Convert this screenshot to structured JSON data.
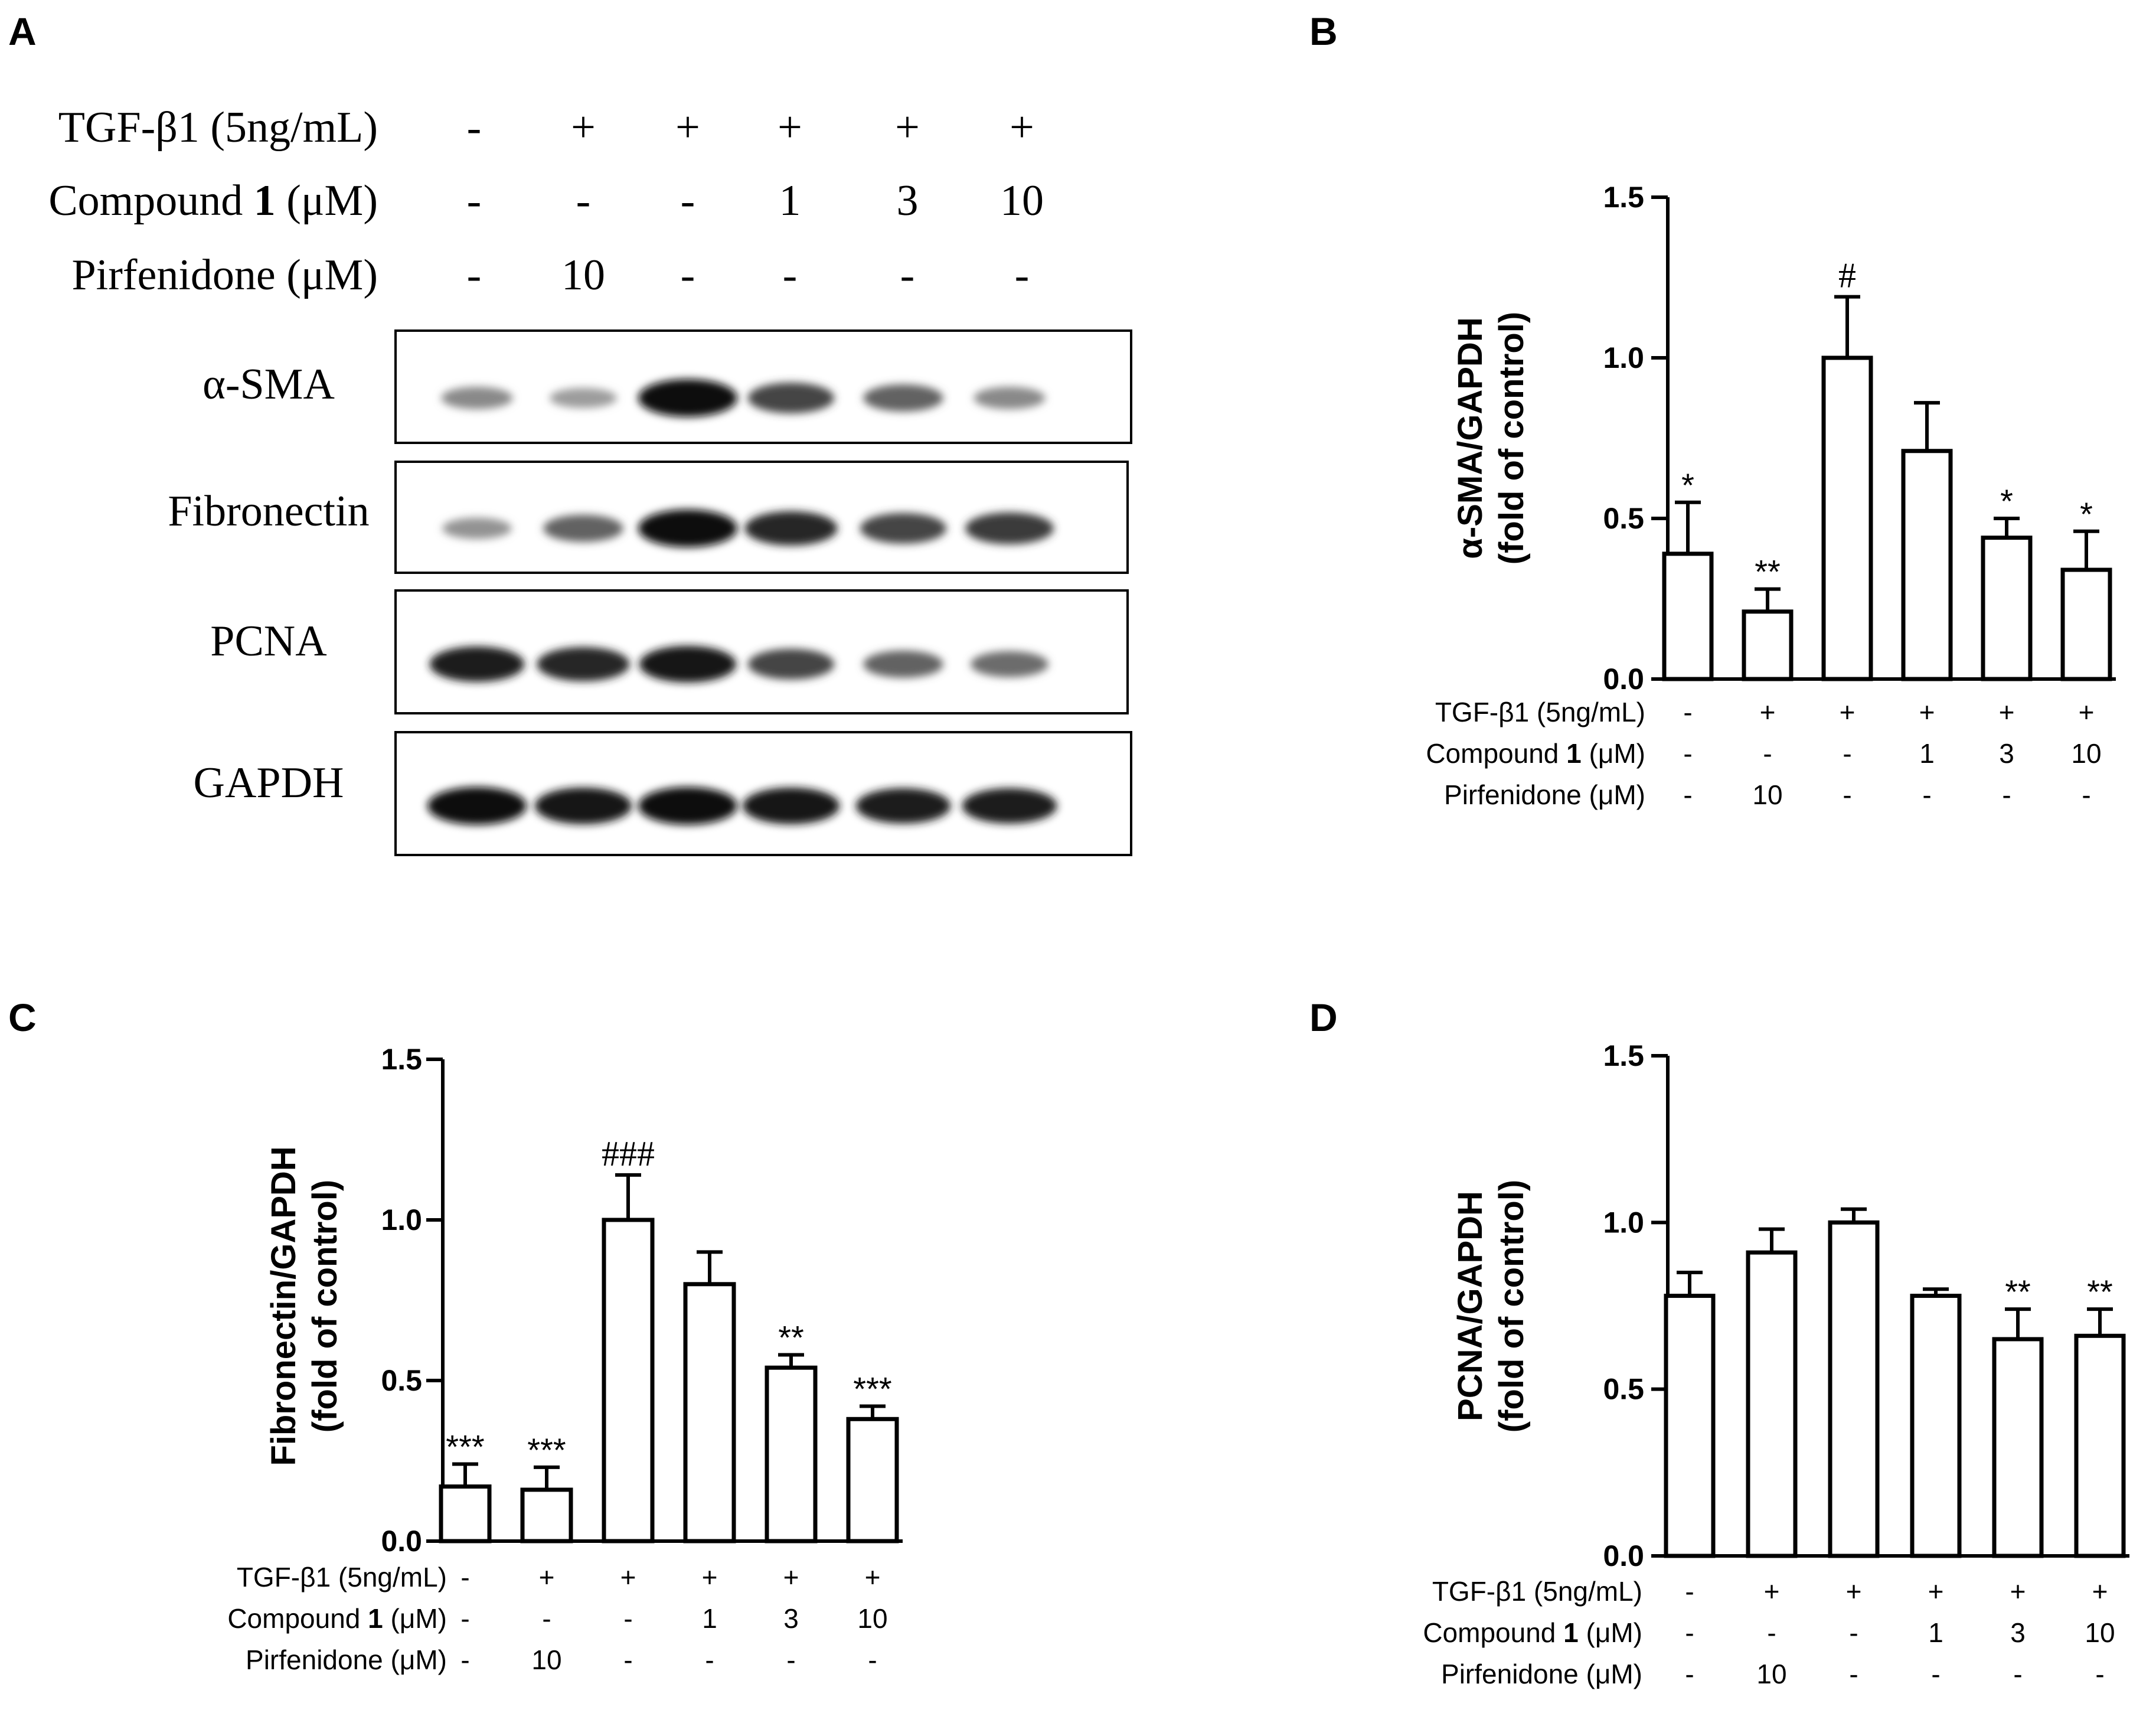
{
  "panels": {
    "a": {
      "letter": "A"
    },
    "b": {
      "letter": "B"
    },
    "c": {
      "letter": "C"
    },
    "d": {
      "letter": "D"
    }
  },
  "conditions": {
    "rows": [
      {
        "label": "TGF-β1 (5ng/mL)",
        "values": [
          "-",
          "+",
          "+",
          "+",
          "+",
          "+"
        ]
      },
      {
        "label_prefix": "Compound ",
        "label_bold": "1",
        "label_suffix": " (μM)",
        "values": [
          "-",
          "-",
          "-",
          "1",
          "3",
          "10"
        ]
      },
      {
        "label": "Pirfenidone (μM)",
        "values": [
          "-",
          "10",
          "-",
          "-",
          "-",
          "-"
        ]
      }
    ],
    "rows_panel_c": [
      {
        "label": "TGF-β1 (5ng/mL)",
        "values": [
          "-",
          "+",
          "+",
          "+",
          "+",
          "+"
        ]
      },
      {
        "label_prefix": "Compound ",
        "label_bold": "1",
        "label_suffix": " (μM)",
        "values": [
          "-",
          "-",
          "-",
          "1",
          "3",
          "10"
        ]
      },
      {
        "label": "Pirfenidone (μM)",
        "values": [
          "-",
          "10",
          "-",
          "-",
          "-",
          "-"
        ]
      }
    ]
  },
  "blot": {
    "bands": [
      {
        "label": "α-SMA",
        "intensity": [
          0.35,
          0.25,
          1.0,
          0.7,
          0.55,
          0.35
        ]
      },
      {
        "label": "Fibronectin",
        "intensity": [
          0.3,
          0.55,
          1.0,
          0.85,
          0.7,
          0.75
        ]
      },
      {
        "label": "PCNA",
        "intensity": [
          0.9,
          0.85,
          0.95,
          0.7,
          0.55,
          0.5
        ]
      },
      {
        "label": "GAPDH",
        "intensity": [
          1.0,
          0.95,
          1.0,
          0.95,
          0.9,
          0.9
        ]
      }
    ]
  },
  "colors": {
    "ink": "#000000",
    "bar_fill": "#ffffff",
    "background": "#ffffff"
  },
  "chart_data": [
    {
      "type": "bar",
      "panel": "B",
      "ylabel_line1": "α-SMA/GAPDH",
      "ylabel_line2": "(fold of control)",
      "ylim": [
        0,
        1.5
      ],
      "yticks": [
        "0.0",
        "0.5",
        "1.0",
        "1.5"
      ],
      "ytick_values": [
        0,
        0.5,
        1.0,
        1.5
      ],
      "values": [
        0.39,
        0.21,
        1.0,
        0.71,
        0.44,
        0.34
      ],
      "errors": [
        0.16,
        0.07,
        0.19,
        0.15,
        0.06,
        0.12
      ],
      "annotations": [
        "*",
        "**",
        "#",
        "",
        "*",
        "*"
      ]
    },
    {
      "type": "bar",
      "panel": "C",
      "ylabel_line1": "Fibronectin/GAPDH",
      "ylabel_line2": "(fold of control)",
      "ylim": [
        0,
        1.5
      ],
      "yticks": [
        "0.0",
        "0.5",
        "1.0",
        "1.5"
      ],
      "ytick_values": [
        0,
        0.5,
        1.0,
        1.5
      ],
      "values": [
        0.17,
        0.16,
        1.0,
        0.8,
        0.54,
        0.38
      ],
      "errors": [
        0.07,
        0.07,
        0.14,
        0.1,
        0.04,
        0.04
      ],
      "annotations": [
        "***",
        "***",
        "###",
        "",
        "**",
        "***"
      ]
    },
    {
      "type": "bar",
      "panel": "D",
      "ylabel_line1": "PCNA/GAPDH",
      "ylabel_line2": "(fold of control)",
      "ylim": [
        0,
        1.5
      ],
      "yticks": [
        "0.0",
        "0.5",
        "1.0",
        "1.5"
      ],
      "ytick_values": [
        0,
        0.5,
        1.0,
        1.5
      ],
      "values": [
        0.78,
        0.91,
        1.0,
        0.78,
        0.65,
        0.66
      ],
      "errors": [
        0.07,
        0.07,
        0.04,
        0.02,
        0.09,
        0.08
      ],
      "annotations": [
        "",
        "",
        "",
        "",
        "**",
        "**"
      ]
    }
  ]
}
